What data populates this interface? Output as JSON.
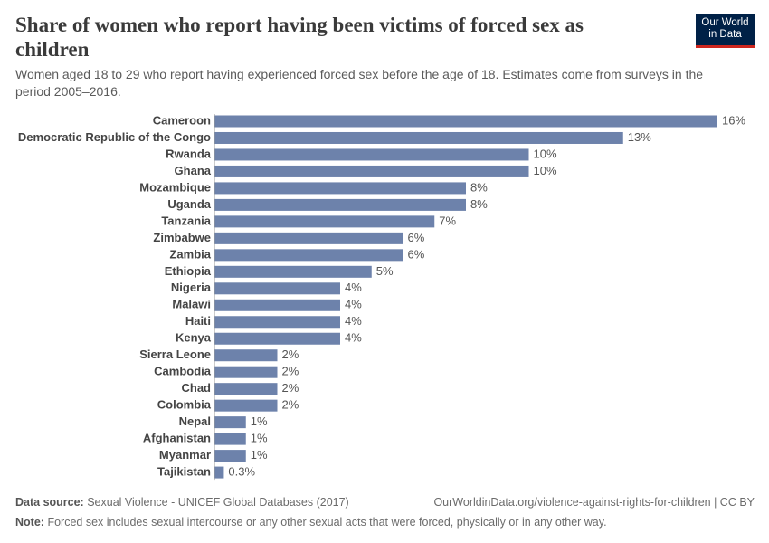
{
  "chart_data": {
    "type": "bar",
    "orientation": "horizontal",
    "title": "Share of women who report having been victims of forced sex as children",
    "subtitle": "Women aged 18 to 29 who report having experienced forced sex before the age of 18. Estimates come from surveys in the period 2005–2016.",
    "categories": [
      "Cameroon",
      "Democratic Republic of the Congo",
      "Rwanda",
      "Ghana",
      "Mozambique",
      "Uganda",
      "Tanzania",
      "Zimbabwe",
      "Zambia",
      "Ethiopia",
      "Nigeria",
      "Malawi",
      "Haiti",
      "Kenya",
      "Sierra Leone",
      "Cambodia",
      "Chad",
      "Colombia",
      "Nepal",
      "Afghanistan",
      "Myanmar",
      "Tajikistan"
    ],
    "values": [
      16,
      13,
      10,
      10,
      8,
      8,
      7,
      6,
      6,
      5,
      4,
      4,
      4,
      4,
      2,
      2,
      2,
      2,
      1,
      1,
      1,
      0.3
    ],
    "value_labels": [
      "16%",
      "13%",
      "10%",
      "10%",
      "8%",
      "8%",
      "7%",
      "6%",
      "6%",
      "5%",
      "4%",
      "4%",
      "4%",
      "4%",
      "2%",
      "2%",
      "2%",
      "2%",
      "1%",
      "1%",
      "1%",
      "0.3%"
    ],
    "color": "#6d82ab"
  },
  "logo": [
    "Our World",
    "in Data"
  ],
  "footer": {
    "source_label": "Data source:",
    "source": "Sexual Violence - UNICEF Global Databases (2017)",
    "url": "OurWorldinData.org/violence-against-rights-for-children | CC BY",
    "note_label": "Note:",
    "note": "Forced sex includes sexual intercourse or any other sexual acts that were forced, physically or in any other way."
  }
}
